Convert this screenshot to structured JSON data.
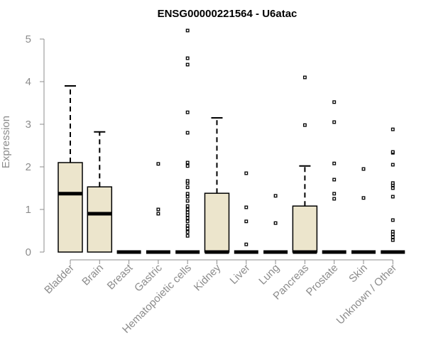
{
  "chart_data": {
    "type": "boxplot",
    "title": "ENSG00000221564 - U6atac",
    "xlabel": "",
    "ylabel": "Expression",
    "ylim": [
      0,
      5.2
    ],
    "yticks": [
      0,
      1,
      2,
      3,
      4,
      5
    ],
    "grid": false,
    "legend": "none",
    "box_fill": "#ece5cc",
    "axis_color": "#8c8c8c",
    "categories": [
      "Bladder",
      "Brain",
      "Breast",
      "Gastric",
      "Hematopoietic cells",
      "Kidney",
      "Liver",
      "Lung",
      "Pancreas",
      "Prostate",
      "Skin",
      "Unknown / Other"
    ],
    "boxes": [
      {
        "name": "Bladder",
        "whisker_low": 0,
        "q1": 0,
        "median": 1.37,
        "q3": 2.1,
        "whisker_high": 3.9,
        "outliers": []
      },
      {
        "name": "Brain",
        "whisker_low": 0,
        "q1": 0,
        "median": 0.9,
        "q3": 1.53,
        "whisker_high": 2.82,
        "outliers": []
      },
      {
        "name": "Breast",
        "whisker_low": 0,
        "q1": 0,
        "median": 0,
        "q3": 0,
        "whisker_high": 0,
        "outliers": []
      },
      {
        "name": "Gastric",
        "whisker_low": 0,
        "q1": 0,
        "median": 0,
        "q3": 0,
        "whisker_high": 0,
        "outliers": [
          0.9,
          1.0,
          2.07
        ]
      },
      {
        "name": "Hematopoietic cells",
        "whisker_low": 0,
        "q1": 0,
        "median": 0,
        "q3": 0,
        "whisker_high": 0,
        "outliers": [
          0.38,
          0.47,
          0.55,
          0.62,
          0.72,
          0.8,
          0.87,
          0.93,
          1.0,
          1.08,
          1.2,
          1.3,
          1.37,
          1.52,
          1.62,
          1.67,
          2.02,
          2.1,
          2.8,
          3.28,
          4.4,
          4.55,
          5.2
        ]
      },
      {
        "name": "Kidney",
        "whisker_low": 0,
        "q1": 0,
        "median": 0,
        "q3": 1.38,
        "whisker_high": 3.15,
        "outliers": []
      },
      {
        "name": "Liver",
        "whisker_low": 0,
        "q1": 0,
        "median": 0,
        "q3": 0,
        "whisker_high": 0,
        "outliers": [
          0.18,
          0.72,
          1.05,
          1.85
        ]
      },
      {
        "name": "Lung",
        "whisker_low": 0,
        "q1": 0,
        "median": 0,
        "q3": 0,
        "whisker_high": 0,
        "outliers": [
          0.68,
          1.32
        ]
      },
      {
        "name": "Pancreas",
        "whisker_low": 0,
        "q1": 0,
        "median": 0,
        "q3": 1.08,
        "whisker_high": 2.02,
        "outliers": [
          2.98,
          4.1
        ]
      },
      {
        "name": "Prostate",
        "whisker_low": 0,
        "q1": 0,
        "median": 0,
        "q3": 0,
        "whisker_high": 0,
        "outliers": [
          1.25,
          1.37,
          1.7,
          2.08,
          3.05,
          3.52
        ]
      },
      {
        "name": "Skin",
        "whisker_low": 0,
        "q1": 0,
        "median": 0,
        "q3": 0,
        "whisker_high": 0,
        "outliers": [
          1.27,
          1.95
        ]
      },
      {
        "name": "Unknown / Other",
        "whisker_low": 0,
        "q1": 0,
        "median": 0,
        "q3": 0,
        "whisker_high": 0,
        "outliers": [
          0.28,
          0.35,
          0.42,
          0.48,
          0.75,
          1.3,
          1.5,
          1.57,
          1.62,
          2.05,
          2.33,
          2.35,
          2.88
        ]
      }
    ]
  }
}
